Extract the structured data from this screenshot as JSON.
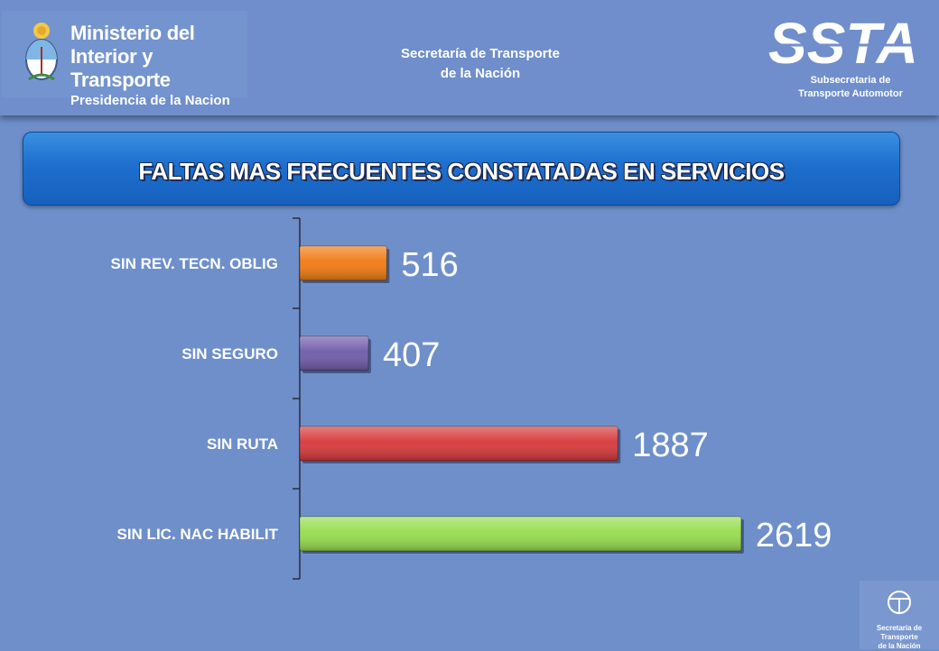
{
  "header": {
    "ministry_line1": "Ministerio del",
    "ministry_line2": "Interior y Transporte",
    "ministry_line3": "Presidencia de la Nacion",
    "secretaria_line1": "Secretaría de Transporte",
    "secretaria_line2": "de la Nación",
    "ssta_logo": "SSTA",
    "ssta_sub_line1": "Subsecretaria de",
    "ssta_sub_line2": "Transporte Automotor"
  },
  "corner_logo": {
    "line1": "Secretaría de Transporte",
    "line2": "de la Nación"
  },
  "colors": {
    "background": "#6e8fca",
    "bar_orange": "#f07a12",
    "bar_purple": "#6e5aa8",
    "bar_red": "#d6383a",
    "bar_green": "#96dc4e"
  },
  "chart_data": {
    "type": "bar",
    "orientation": "horizontal",
    "title": "FALTAS MAS FRECUENTES CONSTATADAS EN SERVICIOS",
    "categories": [
      "SIN REV. TECN. OBLIG",
      "SIN SEGURO",
      "SIN RUTA",
      "SIN LIC. NAC HABILIT"
    ],
    "values": [
      516,
      407,
      1887,
      2619
    ],
    "bar_colors": [
      "#f07a12",
      "#6e5aa8",
      "#d6383a",
      "#96dc4e"
    ],
    "xlim": [
      0,
      3000
    ],
    "grid": false,
    "legend": "none"
  }
}
